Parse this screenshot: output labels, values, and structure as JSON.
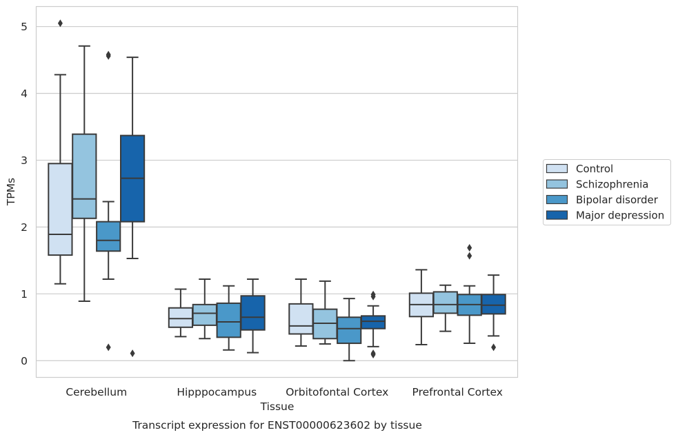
{
  "chart_data": {
    "type": "box",
    "caption": "Transcript expression for ENST00000623602 by tissue",
    "xlabel": "Tissue",
    "ylabel": "TPMs",
    "ylim": [
      -0.25,
      5.3
    ],
    "yticks": [
      0,
      1,
      2,
      3,
      4,
      5
    ],
    "grid": "horizontal",
    "legend_position": "right",
    "categories": [
      "Cerebellum",
      "Hipppocampus",
      "Orbitofontal Cortex",
      "Prefrontal Cortex"
    ],
    "series": [
      {
        "name": "Control",
        "color": "#d0e1f2",
        "boxes": [
          {
            "whisker_low": 1.15,
            "q1": 1.58,
            "median": 1.89,
            "q3": 2.95,
            "whisker_high": 4.28,
            "outliers": [
              5.05
            ]
          },
          {
            "whisker_low": 0.36,
            "q1": 0.5,
            "median": 0.63,
            "q3": 0.79,
            "whisker_high": 1.07,
            "outliers": []
          },
          {
            "whisker_low": 0.22,
            "q1": 0.4,
            "median": 0.52,
            "q3": 0.85,
            "whisker_high": 1.22,
            "outliers": []
          },
          {
            "whisker_low": 0.24,
            "q1": 0.66,
            "median": 0.84,
            "q3": 1.01,
            "whisker_high": 1.36,
            "outliers": []
          }
        ]
      },
      {
        "name": "Schizophrenia",
        "color": "#94c4df",
        "boxes": [
          {
            "whisker_low": 0.89,
            "q1": 2.13,
            "median": 2.42,
            "q3": 3.39,
            "whisker_high": 4.71,
            "outliers": []
          },
          {
            "whisker_low": 0.33,
            "q1": 0.53,
            "median": 0.71,
            "q3": 0.84,
            "whisker_high": 1.22,
            "outliers": []
          },
          {
            "whisker_low": 0.25,
            "q1": 0.33,
            "median": 0.56,
            "q3": 0.77,
            "whisker_high": 1.19,
            "outliers": []
          },
          {
            "whisker_low": 0.44,
            "q1": 0.71,
            "median": 0.84,
            "q3": 1.03,
            "whisker_high": 1.13,
            "outliers": []
          }
        ]
      },
      {
        "name": "Bipolar disorder",
        "color": "#4a98c9",
        "boxes": [
          {
            "whisker_low": 1.22,
            "q1": 1.64,
            "median": 1.8,
            "q3": 2.08,
            "whisker_high": 2.38,
            "outliers": [
              4.56,
              4.58,
              0.2
            ]
          },
          {
            "whisker_low": 0.16,
            "q1": 0.35,
            "median": 0.58,
            "q3": 0.86,
            "whisker_high": 1.12,
            "outliers": []
          },
          {
            "whisker_low": 0.0,
            "q1": 0.26,
            "median": 0.48,
            "q3": 0.65,
            "whisker_high": 0.93,
            "outliers": []
          },
          {
            "whisker_low": 0.26,
            "q1": 0.68,
            "median": 0.84,
            "q3": 0.99,
            "whisker_high": 1.12,
            "outliers": [
              1.69,
              1.57
            ]
          }
        ]
      },
      {
        "name": "Major depression",
        "color": "#1764ab",
        "boxes": [
          {
            "whisker_low": 1.53,
            "q1": 2.08,
            "median": 2.73,
            "q3": 3.37,
            "whisker_high": 4.54,
            "outliers": [
              0.11
            ]
          },
          {
            "whisker_low": 0.12,
            "q1": 0.46,
            "median": 0.65,
            "q3": 0.97,
            "whisker_high": 1.22,
            "outliers": []
          },
          {
            "whisker_low": 0.21,
            "q1": 0.48,
            "median": 0.59,
            "q3": 0.67,
            "whisker_high": 0.82,
            "outliers": [
              0.96,
              0.99,
              0.09,
              0.11
            ]
          },
          {
            "whisker_low": 0.37,
            "q1": 0.7,
            "median": 0.83,
            "q3": 0.99,
            "whisker_high": 1.28,
            "outliers": [
              0.2
            ]
          }
        ]
      }
    ]
  }
}
